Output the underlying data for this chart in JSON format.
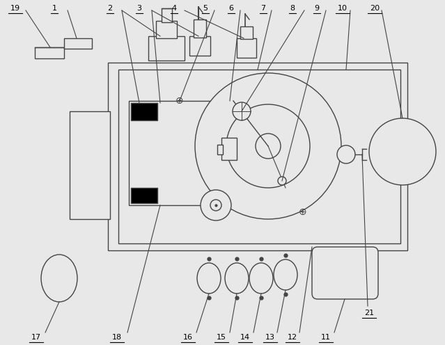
{
  "fig_width": 6.39,
  "fig_height": 4.96,
  "dpi": 100,
  "bg_color": "#e8e8e8",
  "line_color": "#444444",
  "lw": 1.0
}
